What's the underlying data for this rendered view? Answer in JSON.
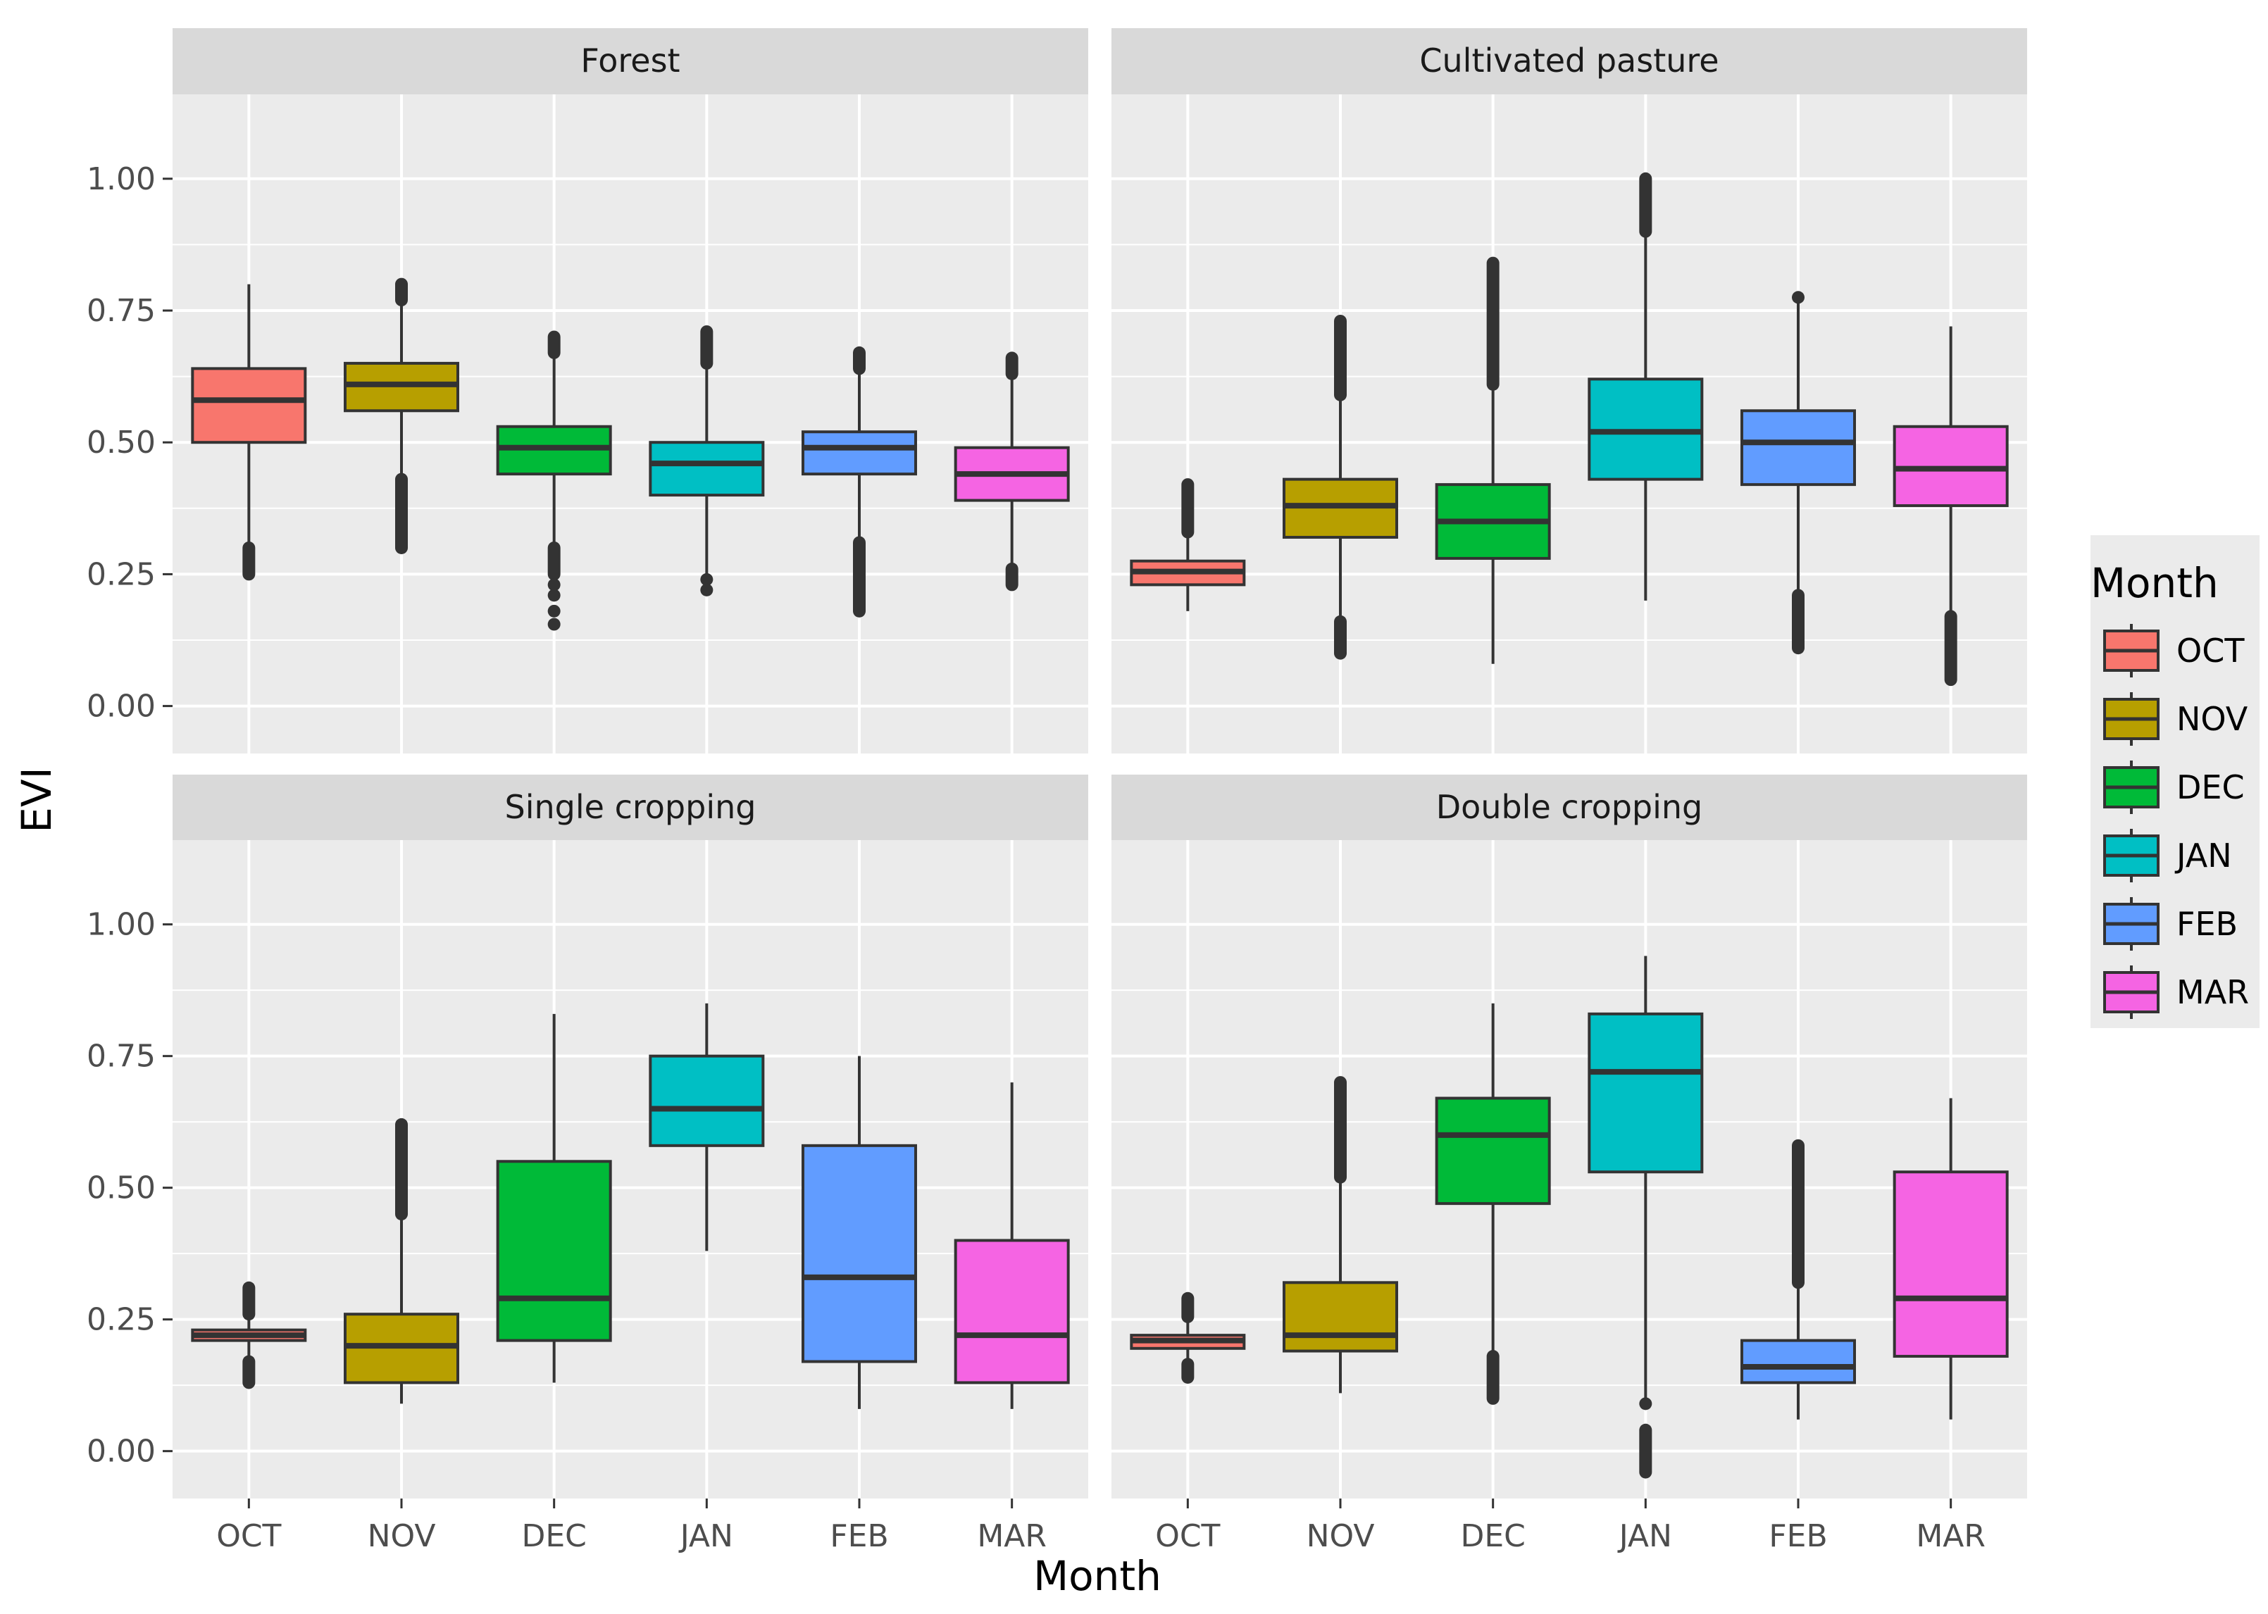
{
  "chart_data": {
    "type": "boxplot",
    "xlabel": "Month",
    "ylabel": "EVI",
    "ylim": [
      -0.09,
      1.16
    ],
    "y_ticks": [
      0.0,
      0.25,
      0.5,
      0.75,
      1.0
    ],
    "y_tick_labels": [
      "0.00",
      "0.25",
      "0.50",
      "0.75",
      "1.00"
    ],
    "categories": [
      "OCT",
      "NOV",
      "DEC",
      "JAN",
      "FEB",
      "MAR"
    ],
    "legend": {
      "title": "Month",
      "position": "right",
      "entries": [
        "OCT",
        "NOV",
        "DEC",
        "JAN",
        "FEB",
        "MAR"
      ]
    },
    "colors": {
      "OCT": "#F8766D",
      "NOV": "#B79F00",
      "DEC": "#00BA38",
      "JAN": "#00BFC4",
      "FEB": "#619CFF",
      "MAR": "#F564E3"
    },
    "panels": [
      {
        "title": "Forest",
        "boxes": [
          {
            "month": "OCT",
            "min": 0.27,
            "q1": 0.5,
            "median": 0.58,
            "q3": 0.64,
            "max": 0.8,
            "outliers": [
              [
                0.25,
                0.3
              ]
            ]
          },
          {
            "month": "NOV",
            "min": 0.44,
            "q1": 0.56,
            "median": 0.61,
            "q3": 0.65,
            "max": 0.77,
            "outliers": [
              [
                0.3,
                0.43
              ],
              [
                0.77,
                0.8
              ]
            ]
          },
          {
            "month": "DEC",
            "min": 0.3,
            "q1": 0.44,
            "median": 0.49,
            "q3": 0.53,
            "max": 0.67,
            "outliers": [
              [
                0.25,
                0.3
              ],
              0.23,
              0.21,
              0.18,
              0.155,
              [
                0.67,
                0.7
              ]
            ]
          },
          {
            "month": "JAN",
            "min": 0.25,
            "q1": 0.4,
            "median": 0.46,
            "q3": 0.5,
            "max": 0.65,
            "outliers": [
              0.24,
              0.22,
              [
                0.65,
                0.71
              ]
            ]
          },
          {
            "month": "FEB",
            "min": 0.31,
            "q1": 0.44,
            "median": 0.49,
            "q3": 0.52,
            "max": 0.64,
            "outliers": [
              [
                0.18,
                0.31
              ],
              [
                0.64,
                0.67
              ]
            ]
          },
          {
            "month": "MAR",
            "min": 0.26,
            "q1": 0.39,
            "median": 0.44,
            "q3": 0.49,
            "max": 0.63,
            "outliers": [
              [
                0.23,
                0.26
              ],
              [
                0.63,
                0.66
              ]
            ]
          }
        ]
      },
      {
        "title": "Cultivated pasture",
        "boxes": [
          {
            "month": "OCT",
            "min": 0.18,
            "q1": 0.23,
            "median": 0.255,
            "q3": 0.275,
            "max": 0.33,
            "outliers": [
              [
                0.33,
                0.42
              ]
            ]
          },
          {
            "month": "NOV",
            "min": 0.16,
            "q1": 0.32,
            "median": 0.38,
            "q3": 0.43,
            "max": 0.59,
            "outliers": [
              [
                0.1,
                0.16
              ],
              [
                0.59,
                0.73
              ]
            ]
          },
          {
            "month": "DEC",
            "min": 0.08,
            "q1": 0.28,
            "median": 0.35,
            "q3": 0.42,
            "max": 0.61,
            "outliers": [
              [
                0.61,
                0.84
              ]
            ]
          },
          {
            "month": "JAN",
            "min": 0.2,
            "q1": 0.43,
            "median": 0.52,
            "q3": 0.62,
            "max": 0.9,
            "outliers": [
              [
                0.9,
                1.0
              ]
            ]
          },
          {
            "month": "FEB",
            "min": 0.21,
            "q1": 0.42,
            "median": 0.5,
            "q3": 0.56,
            "max": 0.77,
            "outliers": [
              [
                0.11,
                0.21
              ],
              0.775
            ]
          },
          {
            "month": "MAR",
            "min": 0.17,
            "q1": 0.38,
            "median": 0.45,
            "q3": 0.53,
            "max": 0.72,
            "outliers": [
              [
                0.05,
                0.17
              ]
            ]
          }
        ]
      },
      {
        "title": "Single cropping",
        "boxes": [
          {
            "month": "OCT",
            "min": 0.17,
            "q1": 0.21,
            "median": 0.22,
            "q3": 0.23,
            "max": 0.26,
            "outliers": [
              [
                0.13,
                0.17
              ],
              [
                0.26,
                0.31
              ]
            ]
          },
          {
            "month": "NOV",
            "min": 0.09,
            "q1": 0.13,
            "median": 0.2,
            "q3": 0.26,
            "max": 0.45,
            "outliers": [
              [
                0.45,
                0.62
              ]
            ]
          },
          {
            "month": "DEC",
            "min": 0.13,
            "q1": 0.21,
            "median": 0.29,
            "q3": 0.55,
            "max": 0.83,
            "outliers": []
          },
          {
            "month": "JAN",
            "min": 0.38,
            "q1": 0.58,
            "median": 0.65,
            "q3": 0.75,
            "max": 0.85,
            "outliers": []
          },
          {
            "month": "FEB",
            "min": 0.08,
            "q1": 0.17,
            "median": 0.33,
            "q3": 0.58,
            "max": 0.75,
            "outliers": []
          },
          {
            "month": "MAR",
            "min": 0.08,
            "q1": 0.13,
            "median": 0.22,
            "q3": 0.4,
            "max": 0.7,
            "outliers": []
          }
        ]
      },
      {
        "title": "Double cropping",
        "boxes": [
          {
            "month": "OCT",
            "min": 0.17,
            "q1": 0.195,
            "median": 0.21,
            "q3": 0.22,
            "max": 0.25,
            "outliers": [
              [
                0.14,
                0.165
              ],
              [
                0.255,
                0.29
              ]
            ]
          },
          {
            "month": "NOV",
            "min": 0.11,
            "q1": 0.19,
            "median": 0.22,
            "q3": 0.32,
            "max": 0.52,
            "outliers": [
              [
                0.52,
                0.7
              ]
            ]
          },
          {
            "month": "DEC",
            "min": 0.19,
            "q1": 0.47,
            "median": 0.6,
            "q3": 0.67,
            "max": 0.85,
            "outliers": [
              [
                0.1,
                0.18
              ]
            ]
          },
          {
            "month": "JAN",
            "min": 0.1,
            "q1": 0.53,
            "median": 0.72,
            "q3": 0.83,
            "max": 0.94,
            "outliers": [
              0.09,
              [
                -0.04,
                0.04
              ]
            ]
          },
          {
            "month": "FEB",
            "min": 0.06,
            "q1": 0.13,
            "median": 0.16,
            "q3": 0.21,
            "max": 0.32,
            "outliers": [
              [
                0.32,
                0.58
              ]
            ]
          },
          {
            "month": "MAR",
            "min": 0.06,
            "q1": 0.18,
            "median": 0.29,
            "q3": 0.53,
            "max": 0.67,
            "outliers": []
          }
        ]
      }
    ]
  }
}
